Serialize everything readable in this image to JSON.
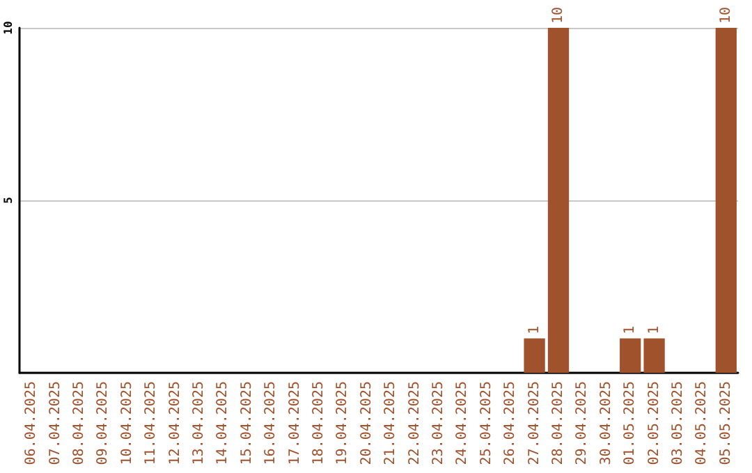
{
  "chart_data": {
    "type": "bar",
    "categories": [
      "06.04.2025",
      "07.04.2025",
      "08.04.2025",
      "09.04.2025",
      "10.04.2025",
      "11.04.2025",
      "12.04.2025",
      "13.04.2025",
      "14.04.2025",
      "15.04.2025",
      "16.04.2025",
      "17.04.2025",
      "18.04.2025",
      "19.04.2025",
      "20.04.2025",
      "21.04.2025",
      "22.04.2025",
      "23.04.2025",
      "24.04.2025",
      "25.04.2025",
      "26.04.2025",
      "27.04.2025",
      "28.04.2025",
      "29.04.2025",
      "30.04.2025",
      "01.05.2025",
      "02.05.2025",
      "03.05.2025",
      "04.05.2025",
      "05.05.2025"
    ],
    "values": [
      0,
      0,
      0,
      0,
      0,
      0,
      0,
      0,
      0,
      0,
      0,
      0,
      0,
      0,
      0,
      0,
      0,
      0,
      0,
      0,
      0,
      1,
      10,
      0,
      0,
      1,
      1,
      0,
      0,
      10
    ],
    "value_labels": [
      null,
      null,
      null,
      null,
      null,
      null,
      null,
      null,
      null,
      null,
      null,
      null,
      null,
      null,
      null,
      null,
      null,
      null,
      null,
      null,
      null,
      "1",
      "10",
      null,
      null,
      "1",
      "1",
      null,
      null,
      "10"
    ],
    "color": "#a0522d",
    "ylim": [
      0,
      10
    ],
    "yticks": [
      {
        "value": 0,
        "label": null
      },
      5,
      10
    ],
    "grid": "y"
  }
}
